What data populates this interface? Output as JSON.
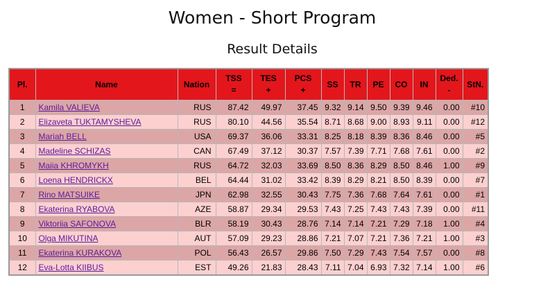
{
  "title": "Women - Short Program",
  "subtitle": "Result Details",
  "columns": [
    {
      "key": "pl",
      "line1": "Pl.",
      "line2": ""
    },
    {
      "key": "name",
      "line1": "Name",
      "line2": ""
    },
    {
      "key": "nation",
      "line1": "Nation",
      "line2": ""
    },
    {
      "key": "tss",
      "line1": "TSS",
      "line2": "="
    },
    {
      "key": "tes",
      "line1": "TES",
      "line2": "+"
    },
    {
      "key": "pcs",
      "line1": "PCS",
      "line2": "+"
    },
    {
      "key": "ss",
      "line1": "SS",
      "line2": ""
    },
    {
      "key": "tr",
      "line1": "TR",
      "line2": ""
    },
    {
      "key": "pe",
      "line1": "PE",
      "line2": ""
    },
    {
      "key": "co",
      "line1": "CO",
      "line2": ""
    },
    {
      "key": "in",
      "line1": "IN",
      "line2": ""
    },
    {
      "key": "ded",
      "line1": "Ded.",
      "line2": "-"
    },
    {
      "key": "stn",
      "line1": "StN.",
      "line2": ""
    }
  ],
  "rows": [
    {
      "pl": "1",
      "name": "Kamila VALIEVA",
      "nation": "RUS",
      "tss": "87.42",
      "tes": "49.97",
      "pcs": "37.45",
      "ss": "9.32",
      "tr": "9.14",
      "pe": "9.50",
      "co": "9.39",
      "in": "9.46",
      "ded": "0.00",
      "stn": "#10"
    },
    {
      "pl": "2",
      "name": "Elizaveta TUKTAMYSHEVA",
      "nation": "RUS",
      "tss": "80.10",
      "tes": "44.56",
      "pcs": "35.54",
      "ss": "8.71",
      "tr": "8.68",
      "pe": "9.00",
      "co": "8.93",
      "in": "9.11",
      "ded": "0.00",
      "stn": "#12"
    },
    {
      "pl": "3",
      "name": "Mariah BELL",
      "nation": "USA",
      "tss": "69.37",
      "tes": "36.06",
      "pcs": "33.31",
      "ss": "8.25",
      "tr": "8.18",
      "pe": "8.39",
      "co": "8.36",
      "in": "8.46",
      "ded": "0.00",
      "stn": "#5"
    },
    {
      "pl": "4",
      "name": "Madeline SCHIZAS",
      "nation": "CAN",
      "tss": "67.49",
      "tes": "37.12",
      "pcs": "30.37",
      "ss": "7.57",
      "tr": "7.39",
      "pe": "7.71",
      "co": "7.68",
      "in": "7.61",
      "ded": "0.00",
      "stn": "#2"
    },
    {
      "pl": "5",
      "name": "Maiia KHROMYKH",
      "nation": "RUS",
      "tss": "64.72",
      "tes": "32.03",
      "pcs": "33.69",
      "ss": "8.50",
      "tr": "8.36",
      "pe": "8.29",
      "co": "8.50",
      "in": "8.46",
      "ded": "1.00",
      "stn": "#9"
    },
    {
      "pl": "6",
      "name": "Loena HENDRICKX",
      "nation": "BEL",
      "tss": "64.44",
      "tes": "31.02",
      "pcs": "33.42",
      "ss": "8.39",
      "tr": "8.29",
      "pe": "8.21",
      "co": "8.50",
      "in": "8.39",
      "ded": "0.00",
      "stn": "#7"
    },
    {
      "pl": "7",
      "name": "Rino MATSUIKE",
      "nation": "JPN",
      "tss": "62.98",
      "tes": "32.55",
      "pcs": "30.43",
      "ss": "7.75",
      "tr": "7.36",
      "pe": "7.68",
      "co": "7.64",
      "in": "7.61",
      "ded": "0.00",
      "stn": "#1"
    },
    {
      "pl": "8",
      "name": "Ekaterina RYABOVA",
      "nation": "AZE",
      "tss": "58.87",
      "tes": "29.34",
      "pcs": "29.53",
      "ss": "7.43",
      "tr": "7.25",
      "pe": "7.43",
      "co": "7.43",
      "in": "7.39",
      "ded": "0.00",
      "stn": "#11"
    },
    {
      "pl": "9",
      "name": "Viktoriia SAFONOVA",
      "nation": "BLR",
      "tss": "58.19",
      "tes": "30.43",
      "pcs": "28.76",
      "ss": "7.14",
      "tr": "7.14",
      "pe": "7.21",
      "co": "7.29",
      "in": "7.18",
      "ded": "1.00",
      "stn": "#4"
    },
    {
      "pl": "10",
      "name": "Olga MIKUTINA",
      "nation": "AUT",
      "tss": "57.09",
      "tes": "29.23",
      "pcs": "28.86",
      "ss": "7.21",
      "tr": "7.07",
      "pe": "7.21",
      "co": "7.36",
      "in": "7.21",
      "ded": "1.00",
      "stn": "#3"
    },
    {
      "pl": "11",
      "name": "Ekaterina KURAKOVA",
      "nation": "POL",
      "tss": "56.43",
      "tes": "26.57",
      "pcs": "29.86",
      "ss": "7.50",
      "tr": "7.29",
      "pe": "7.43",
      "co": "7.54",
      "in": "7.57",
      "ded": "0.00",
      "stn": "#8"
    },
    {
      "pl": "12",
      "name": "Eva-Lotta KIIBUS",
      "nation": "EST",
      "tss": "49.26",
      "tes": "21.83",
      "pcs": "28.43",
      "ss": "7.11",
      "tr": "7.04",
      "pe": "6.93",
      "co": "7.32",
      "in": "7.14",
      "ded": "1.00",
      "stn": "#6"
    }
  ],
  "colors": {
    "header_bg": "#e3161c",
    "row_odd": "#dca6a6",
    "row_even": "#fdd0d0",
    "link": "#5b1b9e"
  }
}
